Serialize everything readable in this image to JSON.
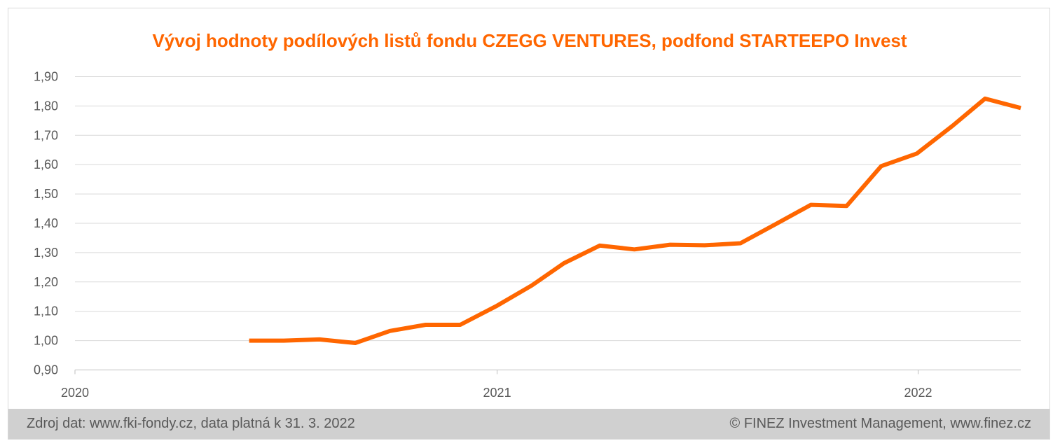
{
  "chart_data": {
    "type": "line",
    "title": "Vývoj hodnoty podílových listů fondu CZEGG VENTURES, podfond STARTEEPO Invest",
    "xlabel": "",
    "ylabel": "",
    "ylim": [
      0.9,
      1.9
    ],
    "yticks": [
      "0,90",
      "1,00",
      "1,10",
      "1,20",
      "1,30",
      "1,40",
      "1,50",
      "1,60",
      "1,70",
      "1,80",
      "1,90"
    ],
    "xlim": [
      "2020-01-01",
      "2022-03-31"
    ],
    "xticks": [
      {
        "date": "2020-01-01",
        "label": "2020"
      },
      {
        "date": "2021-01-01",
        "label": "2021"
      },
      {
        "date": "2022-01-01",
        "label": "2022"
      }
    ],
    "grid": true,
    "color": "#ff6600",
    "series": [
      {
        "x": [
          "2020-05-31",
          "2020-06-30",
          "2020-07-31",
          "2020-08-31",
          "2020-09-30",
          "2020-10-31",
          "2020-11-30",
          "2020-12-31",
          "2021-01-31",
          "2021-02-28",
          "2021-03-31",
          "2021-04-30",
          "2021-05-31",
          "2021-06-30",
          "2021-07-31",
          "2021-08-31",
          "2021-09-30",
          "2021-10-31",
          "2021-11-30",
          "2021-12-31",
          "2022-01-31",
          "2022-02-28",
          "2022-03-31"
        ],
        "values": [
          1.0,
          1.0,
          1.004,
          0.992,
          1.033,
          1.054,
          1.054,
          1.117,
          1.188,
          1.264,
          1.324,
          1.311,
          1.327,
          1.325,
          1.332,
          1.398,
          1.463,
          1.459,
          1.595,
          1.638,
          1.733,
          1.825,
          1.793
        ]
      }
    ]
  },
  "footer": {
    "source": "Zdroj dat: www.fki-fondy.cz, data platná k 31. 3. 2022",
    "copyright": "© FINEZ Investment Management, www.finez.cz"
  }
}
